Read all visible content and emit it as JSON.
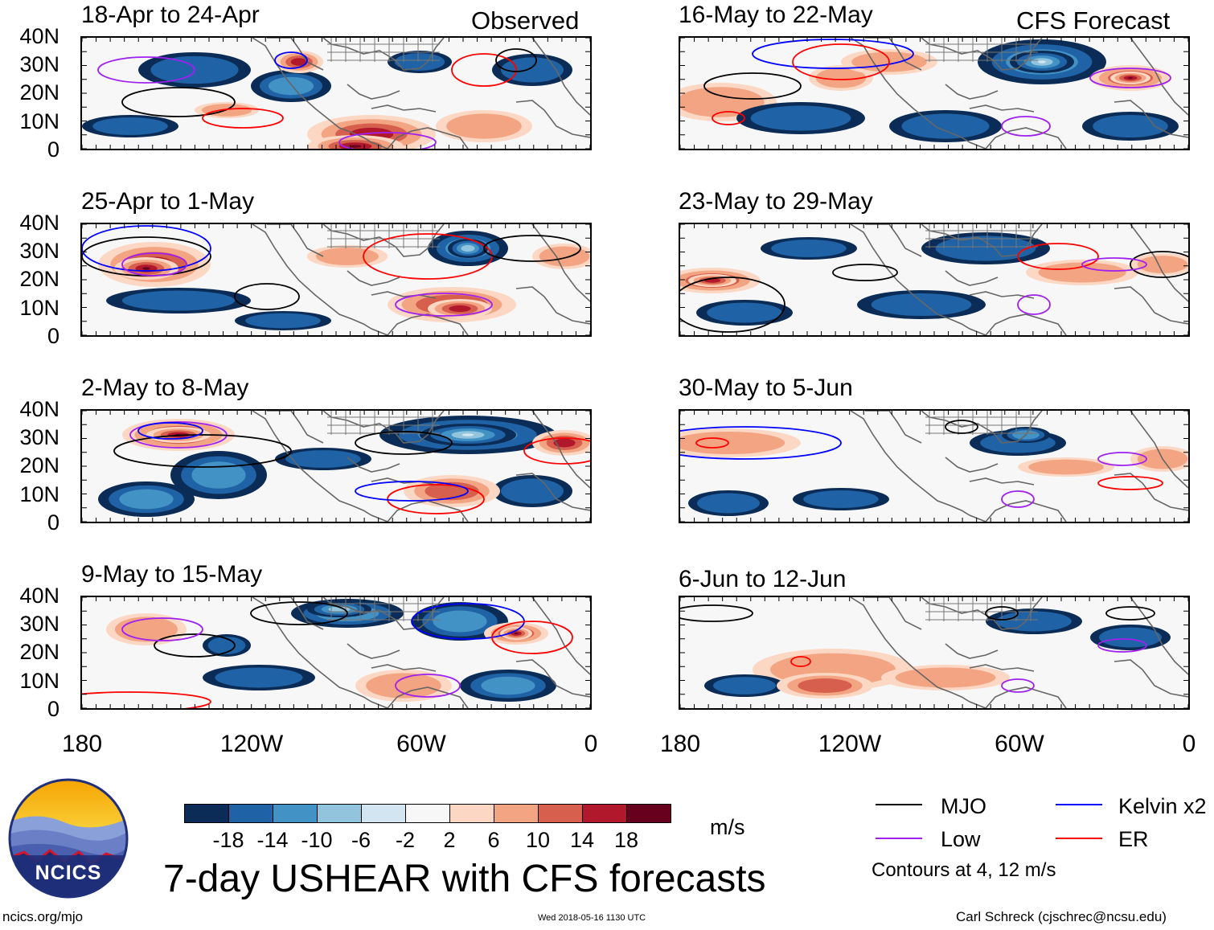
{
  "title": "7-day USHEAR with CFS forecasts",
  "headers": {
    "left": "Observed",
    "right": "CFS Forecast"
  },
  "panels": [
    {
      "label": "18-Apr to 24-Apr",
      "kind": "observed"
    },
    {
      "label": "25-Apr to 1-May",
      "kind": "observed"
    },
    {
      "label": "2-May to 8-May",
      "kind": "observed"
    },
    {
      "label": "9-May to 15-May",
      "kind": "observed"
    },
    {
      "label": "16-May to 22-May",
      "kind": "forecast"
    },
    {
      "label": "23-May to 29-May",
      "kind": "forecast"
    },
    {
      "label": "30-May to 5-Jun",
      "kind": "forecast"
    },
    {
      "label": "6-Jun to 12-Jun",
      "kind": "forecast"
    }
  ],
  "axes": {
    "lat_labels": [
      "40N",
      "30N",
      "20N",
      "10N",
      "0"
    ],
    "lon_labels": [
      "180",
      "120W",
      "60W",
      "0"
    ]
  },
  "colorbar": {
    "labels": [
      "-18",
      "-14",
      "-10",
      "-6",
      "-2",
      "2",
      "6",
      "10",
      "14",
      "18"
    ],
    "colors": [
      "#0b2c56",
      "#1f63a6",
      "#4392c5",
      "#92c4de",
      "#d2e5f0",
      "#f7f7f7",
      "#fbd7c4",
      "#f3a482",
      "#d6604d",
      "#b2182b",
      "#67001f"
    ],
    "unit": "m/s"
  },
  "legend": {
    "items": [
      {
        "label": "MJO",
        "color": "#000000"
      },
      {
        "label": "Kelvin x2",
        "color": "#0000ff"
      },
      {
        "label": "Low",
        "color": "#a020f0"
      },
      {
        "label": "ER",
        "color": "#ff0000"
      }
    ],
    "note": "Contours at 4, 12 m/s"
  },
  "logo": {
    "text": "NCICS"
  },
  "footer": {
    "url": "ncics.org/mjo",
    "timestamp": "Wed 2018-05-16 1130 UTC",
    "author": "Carl Schreck (cjschrec@ncsu.edu)"
  }
}
